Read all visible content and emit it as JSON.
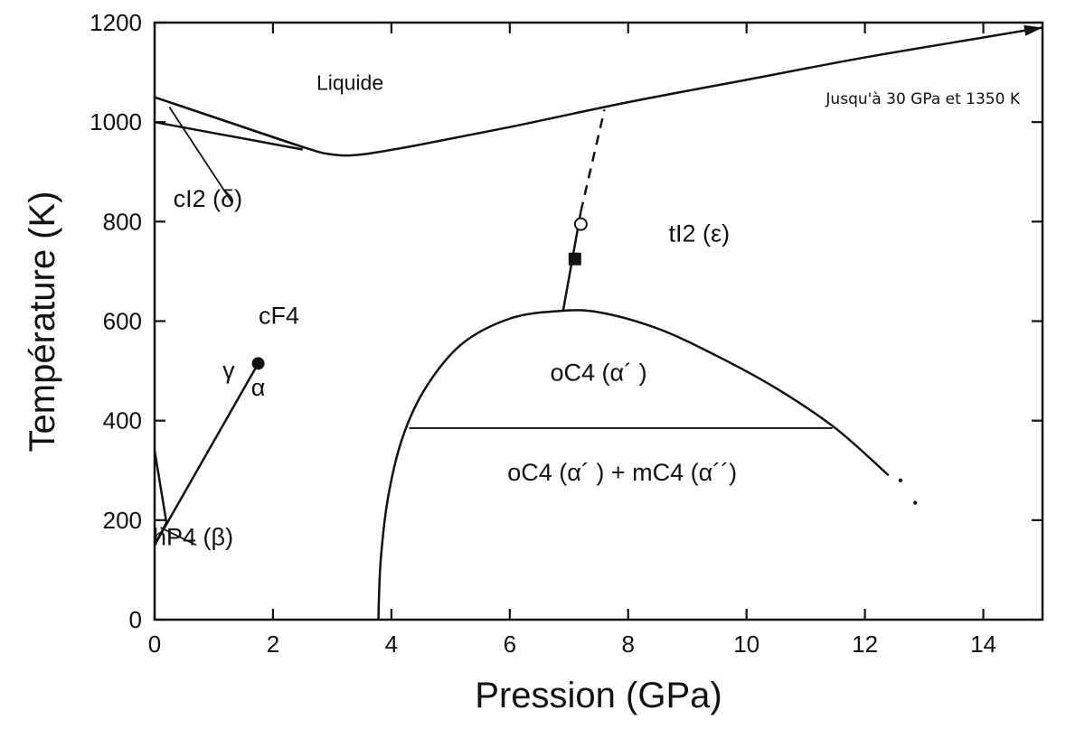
{
  "chart_data": {
    "type": "phase-diagram",
    "xlabel": "Pression  (GPa)",
    "ylabel": "Température  (K)",
    "xlim": [
      0,
      15
    ],
    "ylim": [
      0,
      1200
    ],
    "x_ticks": [
      0,
      2,
      4,
      6,
      8,
      10,
      12,
      14
    ],
    "y_ticks": [
      0,
      200,
      400,
      600,
      800,
      1000,
      1200
    ],
    "grid": false,
    "note": "Jusqu'à 30 GPa et 1350 K",
    "regions": [
      {
        "label": "Liquide",
        "x": 3.3,
        "y": 1065
      },
      {
        "label": "cI2 (δ)",
        "x": 0.9,
        "y": 830
      },
      {
        "label": "tI2 (ε)",
        "x": 9.2,
        "y": 760
      },
      {
        "label": "cF4",
        "x": 2.1,
        "y": 595
      },
      {
        "label": "γ",
        "x": 1.25,
        "y": 485
      },
      {
        "label": "α",
        "x": 1.75,
        "y": 450
      },
      {
        "label": "oC4 (α´ )",
        "x": 7.5,
        "y": 480
      },
      {
        "label": "oC4 (α´ ) + mC4 (α´´)",
        "x": 7.9,
        "y": 280
      },
      {
        "label": "hP4 (β)",
        "x": 0.65,
        "y": 150
      }
    ],
    "boundaries": [
      {
        "name": "melting",
        "style": "solid",
        "points": [
          [
            0,
            1050
          ],
          [
            1,
            1010
          ],
          [
            2.5,
            950
          ],
          [
            3,
            935
          ],
          [
            3.5,
            935
          ],
          [
            4.5,
            955
          ],
          [
            6,
            990
          ],
          [
            8,
            1040
          ],
          [
            10,
            1085
          ],
          [
            12,
            1130
          ],
          [
            14,
            1170
          ],
          [
            15,
            1190
          ]
        ],
        "arrow": true
      },
      {
        "name": "cI2-cF4-upper",
        "style": "solid",
        "points": [
          [
            0,
            1050
          ],
          [
            2.5,
            950
          ]
        ]
      },
      {
        "name": "cI2-cF4-lower",
        "style": "solid",
        "points": [
          [
            0,
            1000
          ],
          [
            2.5,
            945
          ]
        ]
      },
      {
        "name": "cI2-pointer",
        "style": "thin",
        "points": [
          [
            0.25,
            1030
          ],
          [
            1.3,
            840
          ]
        ]
      },
      {
        "name": "cF4-tI2",
        "style": "solid",
        "points": [
          [
            6.9,
            620
          ],
          [
            7.2,
            820
          ]
        ]
      },
      {
        "name": "cF4-tI2-extrapolated",
        "style": "dashed",
        "points": [
          [
            7.2,
            820
          ],
          [
            7.6,
            1025
          ]
        ]
      },
      {
        "name": "oC4-dome",
        "style": "solid",
        "points": [
          [
            3.78,
            0
          ],
          [
            3.82,
            120
          ],
          [
            3.95,
            250
          ],
          [
            4.2,
            370
          ],
          [
            4.6,
            470
          ],
          [
            5.2,
            555
          ],
          [
            6,
            605
          ],
          [
            6.8,
            620
          ],
          [
            7.5,
            618
          ],
          [
            8.5,
            585
          ],
          [
            9.5,
            530
          ],
          [
            10.5,
            465
          ],
          [
            11.5,
            385
          ],
          [
            12.4,
            290
          ]
        ]
      },
      {
        "name": "oC4-mC4",
        "style": "thin",
        "points": [
          [
            4.3,
            385
          ],
          [
            11.45,
            385
          ]
        ]
      },
      {
        "name": "gamma-alpha",
        "style": "solid",
        "points": [
          [
            0,
            150
          ],
          [
            1.75,
            515
          ]
        ]
      },
      {
        "name": "hP4-upper",
        "style": "solid",
        "points": [
          [
            0,
            340
          ],
          [
            0.2,
            195
          ]
        ]
      },
      {
        "name": "hP4-lower",
        "style": "solid",
        "points": [
          [
            0,
            150
          ],
          [
            0.2,
            195
          ]
        ]
      },
      {
        "name": "hP4-pointer",
        "style": "thin",
        "points": [
          [
            0.1,
            185
          ],
          [
            0.7,
            150
          ]
        ]
      }
    ],
    "markers": [
      {
        "shape": "filled-circle",
        "x": 1.75,
        "y": 515
      },
      {
        "shape": "open-circle",
        "x": 7.2,
        "y": 795
      },
      {
        "shape": "filled-square",
        "x": 7.1,
        "y": 725
      },
      {
        "shape": "dot",
        "x": 12.6,
        "y": 280
      },
      {
        "shape": "dot",
        "x": 12.85,
        "y": 235
      }
    ]
  }
}
